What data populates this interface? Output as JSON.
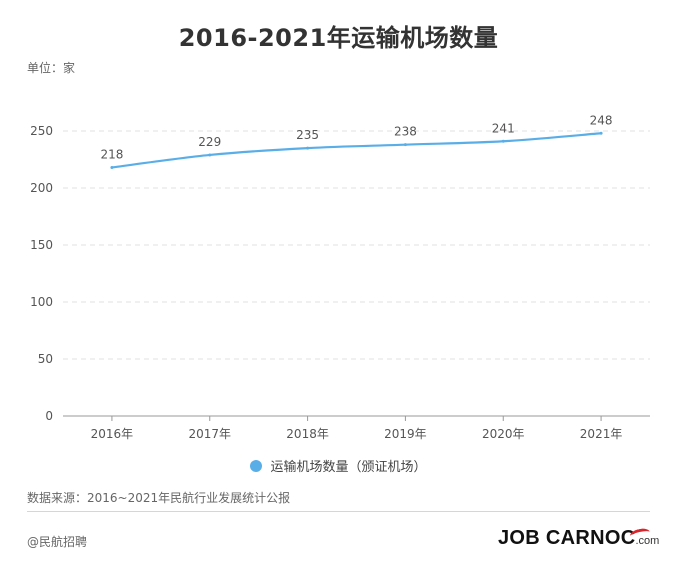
{
  "title": "2016-2021年运输机场数量",
  "unit_label": "单位：家",
  "chart_data": {
    "type": "line",
    "title": "2016-2021年运输机场数量",
    "ylabel": "单位：家",
    "categories": [
      "2016年",
      "2017年",
      "2018年",
      "2019年",
      "2020年",
      "2021年"
    ],
    "series": [
      {
        "name": "运输机场数量（颁证机场）",
        "values": [
          218,
          229,
          235,
          238,
          241,
          248
        ],
        "color": "#5aaee8"
      }
    ],
    "ylim": [
      0,
      250
    ],
    "yticks": [
      0,
      50,
      100,
      150,
      200,
      250
    ],
    "grid": true,
    "legend_position": "bottom",
    "data_labels": true
  },
  "legend_label": "运输机场数量（颁证机场）",
  "source": "数据来源：2016~2021年民航行业发展统计公报",
  "footer_left": "@民航招聘",
  "logo": {
    "main": "JOB",
    "brand": "CARNOC",
    "suffix": ".com"
  }
}
